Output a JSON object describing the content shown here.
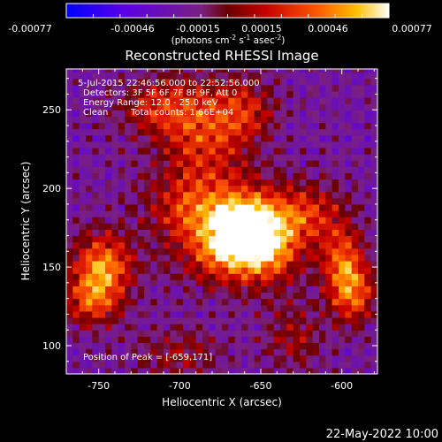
{
  "colorbar": {
    "ticks": [
      "-0.00077",
      "-0.00046",
      "-0.00015",
      "0.00015",
      "0.00046",
      "0.00077"
    ],
    "units_prefix": "(photons cm",
    "units_exp1": "-2",
    "units_mid": " s",
    "units_exp2": "-1",
    "units_mid2": " asec",
    "units_exp3": "-2",
    "units_suffix": ")"
  },
  "annotations": {
    "time": "5-Jul-2015 22:46:56.000 to 22:52:56.000",
    "detectors": "Detectors: 3F 5F 6F 7F 8F 9F, Att 0",
    "energy": "Energy Range: 12.0 - 25.0 keV",
    "method": "Clean",
    "counts": "Total counts: 1.66E+04",
    "peak": "Position of Peak = [-659,171]"
  },
  "footer_timestamp": "22-May-2022 10:00",
  "chart_data": {
    "type": "heatmap",
    "title": "Reconstructed RHESSI Image",
    "xlabel": "Heliocentric X (arcsec)",
    "ylabel": "Heliocentric Y (arcsec)",
    "xlim": [
      -770,
      -578
    ],
    "ylim": [
      82,
      276
    ],
    "xticks": [
      -750,
      -700,
      -650,
      -600
    ],
    "yticks": [
      100,
      150,
      200,
      250
    ],
    "colorbar_range": [
      -0.00077,
      0.00077
    ],
    "peak": {
      "x": -659,
      "y": 171
    },
    "sources": [
      {
        "x": -659,
        "y": 171,
        "amp": 1.0,
        "sx": 14,
        "sy": 16
      },
      {
        "x": -675,
        "y": 165,
        "amp": 0.55,
        "sx": 20,
        "sy": 18
      },
      {
        "x": -640,
        "y": 168,
        "amp": 0.5,
        "sx": 14,
        "sy": 20
      },
      {
        "x": -690,
        "y": 190,
        "amp": 0.45,
        "sx": 22,
        "sy": 16
      },
      {
        "x": -747,
        "y": 150,
        "amp": 0.75,
        "sx": 13,
        "sy": 16
      },
      {
        "x": -755,
        "y": 128,
        "amp": 0.45,
        "sx": 12,
        "sy": 12
      },
      {
        "x": -685,
        "y": 235,
        "amp": 0.5,
        "sx": 20,
        "sy": 22
      },
      {
        "x": -712,
        "y": 252,
        "amp": 0.4,
        "sx": 18,
        "sy": 12
      },
      {
        "x": -660,
        "y": 250,
        "amp": 0.35,
        "sx": 14,
        "sy": 14
      },
      {
        "x": -600,
        "y": 150,
        "amp": 0.65,
        "sx": 9,
        "sy": 20
      },
      {
        "x": -590,
        "y": 135,
        "amp": 0.45,
        "sx": 8,
        "sy": 14
      },
      {
        "x": -620,
        "y": 185,
        "amp": 0.4,
        "sx": 14,
        "sy": 14
      },
      {
        "x": -700,
        "y": 95,
        "amp": 0.3,
        "sx": 18,
        "sy": 10
      },
      {
        "x": -630,
        "y": 105,
        "amp": 0.3,
        "sx": 12,
        "sy": 14
      }
    ]
  }
}
